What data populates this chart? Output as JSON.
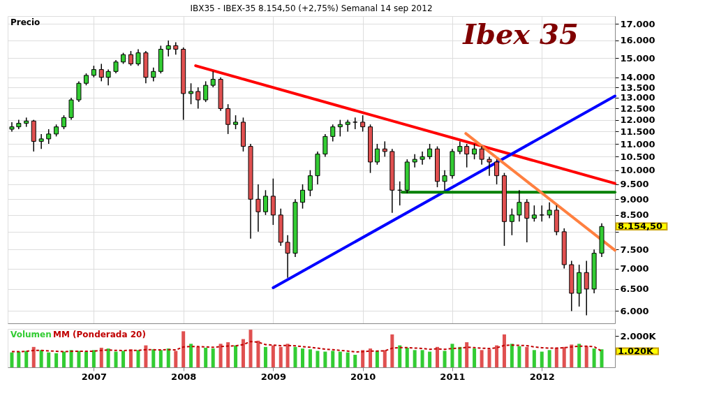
{
  "chart_data": [
    {
      "type": "candlestick",
      "title": "IBX35 - IBEX-35   8.154,50 (+2,75%)   Semanal  14 sep 2012",
      "ylabel": "Precio",
      "log": true,
      "grid": true,
      "tick_labels": "y",
      "x": [
        "2006-02",
        "2006-03",
        "2006-04",
        "2006-05",
        "2006-06",
        "2006-07",
        "2006-08",
        "2006-09",
        "2006-10",
        "2006-11",
        "2006-12",
        "2007-01",
        "2007-02",
        "2007-03",
        "2007-04",
        "2007-05",
        "2007-06",
        "2007-07",
        "2007-08",
        "2007-09",
        "2007-10",
        "2007-11",
        "2007-12",
        "2008-01",
        "2008-02",
        "2008-03",
        "2008-04",
        "2008-05",
        "2008-06",
        "2008-07",
        "2008-08",
        "2008-09",
        "2008-10",
        "2008-11",
        "2008-12",
        "2009-01",
        "2009-02",
        "2009-03",
        "2009-04",
        "2009-05",
        "2009-06",
        "2009-07",
        "2009-08",
        "2009-09",
        "2009-10",
        "2009-11",
        "2009-12",
        "2010-01",
        "2010-02",
        "2010-03",
        "2010-04",
        "2010-05",
        "2010-06",
        "2010-07",
        "2010-08",
        "2010-09",
        "2010-10",
        "2010-11",
        "2010-12",
        "2011-01",
        "2011-02",
        "2011-03",
        "2011-04",
        "2011-05",
        "2011-06",
        "2011-07",
        "2011-08",
        "2011-09",
        "2011-10",
        "2011-11",
        "2011-12",
        "2012-01",
        "2012-02",
        "2012-03",
        "2012-04",
        "2012-05",
        "2012-06",
        "2012-07",
        "2012-08",
        "2012-09"
      ],
      "ohlc": [
        [
          11600,
          11900,
          11500,
          11700
        ],
        [
          11700,
          12000,
          11600,
          11850
        ],
        [
          11850,
          12100,
          11700,
          11950
        ],
        [
          11950,
          12000,
          10700,
          11100
        ],
        [
          11100,
          11400,
          10800,
          11200
        ],
        [
          11200,
          11600,
          11000,
          11400
        ],
        [
          11400,
          11800,
          11300,
          11700
        ],
        [
          11700,
          12200,
          11600,
          12100
        ],
        [
          12100,
          13000,
          12000,
          12900
        ],
        [
          12900,
          13800,
          12800,
          13700
        ],
        [
          13700,
          14200,
          13600,
          14100
        ],
        [
          14100,
          14600,
          14000,
          14400
        ],
        [
          14400,
          14700,
          13800,
          14000
        ],
        [
          14000,
          14400,
          13600,
          14300
        ],
        [
          14300,
          14900,
          14200,
          14800
        ],
        [
          14800,
          15300,
          14700,
          15200
        ],
        [
          15200,
          15400,
          14600,
          14700
        ],
        [
          14700,
          15500,
          14600,
          15300
        ],
        [
          15300,
          15400,
          13700,
          14000
        ],
        [
          14000,
          14500,
          13800,
          14300
        ],
        [
          14300,
          15700,
          14200,
          15500
        ],
        [
          15500,
          16000,
          15100,
          15700
        ],
        [
          15700,
          15900,
          15200,
          15500
        ],
        [
          15500,
          15600,
          12000,
          13200
        ],
        [
          13200,
          13700,
          12700,
          13300
        ],
        [
          13300,
          13500,
          12500,
          12900
        ],
        [
          12900,
          13800,
          12800,
          13600
        ],
        [
          13600,
          14300,
          13500,
          13900
        ],
        [
          13900,
          14000,
          12400,
          12500
        ],
        [
          12500,
          12700,
          11400,
          11800
        ],
        [
          11800,
          12200,
          11600,
          11900
        ],
        [
          11900,
          12100,
          10700,
          10900
        ],
        [
          10900,
          11000,
          7800,
          9000
        ],
        [
          9000,
          9500,
          8000,
          8600
        ],
        [
          8600,
          9300,
          8500,
          9100
        ],
        [
          9100,
          9700,
          8200,
          8500
        ],
        [
          8500,
          8700,
          7600,
          7700
        ],
        [
          7700,
          7900,
          6770,
          7400
        ],
        [
          7400,
          9000,
          7300,
          8900
        ],
        [
          8900,
          9500,
          8700,
          9300
        ],
        [
          9300,
          10000,
          9100,
          9800
        ],
        [
          9800,
          10700,
          9500,
          10600
        ],
        [
          10600,
          11400,
          10500,
          11300
        ],
        [
          11300,
          11800,
          11100,
          11700
        ],
        [
          11700,
          12000,
          11300,
          11800
        ],
        [
          11800,
          12000,
          11500,
          11900
        ],
        [
          11900,
          12100,
          11600,
          11900
        ],
        [
          11900,
          12200,
          11500,
          11700
        ],
        [
          11700,
          11800,
          9900,
          10300
        ],
        [
          10300,
          11000,
          10200,
          10800
        ],
        [
          10800,
          11100,
          10500,
          10700
        ],
        [
          10700,
          10800,
          8570,
          9300
        ],
        [
          9300,
          9600,
          8800,
          9300
        ],
        [
          9300,
          10400,
          9200,
          10300
        ],
        [
          10300,
          10600,
          10100,
          10400
        ],
        [
          10400,
          10700,
          10200,
          10500
        ],
        [
          10500,
          11000,
          10400,
          10800
        ],
        [
          10800,
          10900,
          9400,
          9600
        ],
        [
          9600,
          10000,
          9300,
          9800
        ],
        [
          9800,
          10800,
          9700,
          10700
        ],
        [
          10700,
          11100,
          10600,
          10900
        ],
        [
          10900,
          11000,
          10100,
          10600
        ],
        [
          10600,
          11000,
          10400,
          10800
        ],
        [
          10800,
          10900,
          10200,
          10400
        ],
        [
          10400,
          10500,
          9800,
          10300
        ],
        [
          10300,
          10400,
          9500,
          9800
        ],
        [
          9800,
          9900,
          7600,
          8300
        ],
        [
          8300,
          8700,
          7900,
          8500
        ],
        [
          8500,
          9300,
          8300,
          8900
        ],
        [
          8900,
          9000,
          7700,
          8400
        ],
        [
          8400,
          8800,
          8300,
          8500
        ],
        [
          8500,
          8800,
          8300,
          8500
        ],
        [
          8500,
          8900,
          8400,
          8650
        ],
        [
          8650,
          8800,
          7900,
          8000
        ],
        [
          8000,
          8100,
          7000,
          7100
        ],
        [
          7100,
          7200,
          6000,
          6400
        ],
        [
          6400,
          7100,
          6100,
          6900
        ],
        [
          6900,
          7200,
          5910,
          6500
        ],
        [
          6500,
          7500,
          6400,
          7400
        ],
        [
          7400,
          8250,
          7300,
          8154.5
        ]
      ],
      "series": [
        {
          "type": "line",
          "color": "#ff0000",
          "x": [
            "2008-02-20",
            "2012-10-25"
          ],
          "values": [
            14600,
            9530
          ]
        },
        {
          "type": "line",
          "color": "#0000ff",
          "x": [
            "2009-01-01",
            "2012-10-25"
          ],
          "values": [
            6530,
            13080
          ]
        },
        {
          "type": "line",
          "color": "#008000",
          "x": [
            "2010-06-10",
            "2012-10-25"
          ],
          "values": [
            9230,
            9230
          ]
        },
        {
          "type": "line",
          "color": "#ff8040",
          "x": [
            "2011-02-25",
            "2012-10-25"
          ],
          "values": [
            11420,
            7480
          ]
        }
      ],
      "annotations": [
        "Ibex 35",
        {
          "text": "8.154,50",
          "x": "2012-09",
          "y": 8154.5
        }
      ],
      "xlim": [
        "2006-01-15",
        "2012-10-25"
      ],
      "xticks": [
        "2007",
        "2008",
        "2009",
        "2010",
        "2011",
        "2012"
      ],
      "ylim": [
        5740,
        17480
      ],
      "yticks": [
        {
          "value": 6000,
          "label": "6.000"
        },
        {
          "value": 6500,
          "label": "6.500"
        },
        {
          "value": 7000,
          "label": "7.000"
        },
        {
          "value": 7500,
          "label": "7.500"
        },
        {
          "value": 8000,
          "label": null
        },
        {
          "value": 8500,
          "label": "8.500"
        },
        {
          "value": 9000,
          "label": "9.000"
        },
        {
          "value": 9500,
          "label": "9.500"
        },
        {
          "value": 10000,
          "label": "10.000"
        },
        {
          "value": 10500,
          "label": "10.500"
        },
        {
          "value": 11000,
          "label": "11.000"
        },
        {
          "value": 11500,
          "label": "11.500"
        },
        {
          "value": 12000,
          "label": "12.000"
        },
        {
          "value": 12500,
          "label": "12.500"
        },
        {
          "value": 13000,
          "label": "13.000"
        },
        {
          "value": 13500,
          "label": "13.500"
        },
        {
          "value": 14000,
          "label": "14.000"
        },
        {
          "value": 15000,
          "label": "15.000"
        },
        {
          "value": 16000,
          "label": "16.000"
        },
        {
          "value": 17000,
          "label": "17.000"
        }
      ]
    },
    {
      "type": "bar",
      "legend": "top left",
      "x": [
        "2006-02",
        "2006-03",
        "2006-04",
        "2006-05",
        "2006-06",
        "2006-07",
        "2006-08",
        "2006-09",
        "2006-10",
        "2006-11",
        "2006-12",
        "2007-01",
        "2007-02",
        "2007-03",
        "2007-04",
        "2007-05",
        "2007-06",
        "2007-07",
        "2007-08",
        "2007-09",
        "2007-10",
        "2007-11",
        "2007-12",
        "2008-01",
        "2008-02",
        "2008-03",
        "2008-04",
        "2008-05",
        "2008-06",
        "2008-07",
        "2008-08",
        "2008-09",
        "2008-10",
        "2008-11",
        "2008-12",
        "2009-01",
        "2009-02",
        "2009-03",
        "2009-04",
        "2009-05",
        "2009-06",
        "2009-07",
        "2009-08",
        "2009-09",
        "2009-10",
        "2009-11",
        "2009-12",
        "2010-01",
        "2010-02",
        "2010-03",
        "2010-04",
        "2010-05",
        "2010-06",
        "2010-07",
        "2010-08",
        "2010-09",
        "2010-10",
        "2010-11",
        "2010-12",
        "2011-01",
        "2011-02",
        "2011-03",
        "2011-04",
        "2011-05",
        "2011-06",
        "2011-07",
        "2011-08",
        "2011-09",
        "2011-10",
        "2011-11",
        "2011-12",
        "2012-01",
        "2012-02",
        "2012-03",
        "2012-04",
        "2012-05",
        "2012-06",
        "2012-07",
        "2012-08",
        "2012-09"
      ],
      "series": [
        {
          "name": "Volumen",
          "type": "bar",
          "color": "#33cc33",
          "values": [
            950,
            1000,
            1050,
            1300,
            1100,
            950,
            900,
            1000,
            1100,
            1050,
            1000,
            1100,
            1250,
            1200,
            1000,
            1050,
            1150,
            1100,
            1400,
            1150,
            1100,
            1200,
            1050,
            2300,
            1500,
            1300,
            1250,
            1200,
            1500,
            1600,
            1400,
            1800,
            2400,
            1700,
            1300,
            1400,
            1300,
            1500,
            1300,
            1200,
            1150,
            1050,
            1000,
            1050,
            1000,
            950,
            800,
            1100,
            1200,
            1050,
            1100,
            2100,
            1400,
            1250,
            1100,
            1100,
            1000,
            1300,
            1050,
            1500,
            1300,
            1600,
            1200,
            1100,
            1150,
            1400,
            2100,
            1500,
            1350,
            1300,
            1100,
            1000,
            1100,
            1250,
            1300,
            1450,
            1500,
            1350,
            1200,
            1150
          ],
          "colors": [
            "#33cc33",
            "#33cc33",
            "#33cc33",
            "#e05050",
            "#33cc33",
            "#33cc33",
            "#33cc33",
            "#33cc33",
            "#33cc33",
            "#33cc33",
            "#33cc33",
            "#33cc33",
            "#e05050",
            "#33cc33",
            "#33cc33",
            "#33cc33",
            "#e05050",
            "#33cc33",
            "#e05050",
            "#33cc33",
            "#33cc33",
            "#33cc33",
            "#e05050",
            "#e05050",
            "#33cc33",
            "#e05050",
            "#33cc33",
            "#33cc33",
            "#e05050",
            "#e05050",
            "#33cc33",
            "#e05050",
            "#e05050",
            "#e05050",
            "#33cc33",
            "#e05050",
            "#e05050",
            "#e05050",
            "#33cc33",
            "#33cc33",
            "#33cc33",
            "#33cc33",
            "#33cc33",
            "#33cc33",
            "#33cc33",
            "#33cc33",
            "#33cc33",
            "#e05050",
            "#e05050",
            "#33cc33",
            "#e05050",
            "#e05050",
            "#33cc33",
            "#33cc33",
            "#33cc33",
            "#33cc33",
            "#33cc33",
            "#e05050",
            "#33cc33",
            "#33cc33",
            "#33cc33",
            "#e05050",
            "#33cc33",
            "#e05050",
            "#e05050",
            "#e05050",
            "#e05050",
            "#33cc33",
            "#33cc33",
            "#e05050",
            "#33cc33",
            "#33cc33",
            "#33cc33",
            "#e05050",
            "#e05050",
            "#e05050",
            "#33cc33",
            "#e05050",
            "#33cc33",
            "#33cc33"
          ]
        },
        {
          "name": "MM (Ponderada 20)",
          "type": "line",
          "color": "#c00000",
          "line_style": "dashed",
          "values": [
            1000,
            1000,
            1020,
            1080,
            1080,
            1050,
            1020,
            1000,
            1020,
            1030,
            1020,
            1030,
            1080,
            1100,
            1080,
            1070,
            1080,
            1080,
            1120,
            1120,
            1110,
            1130,
            1110,
            1300,
            1330,
            1320,
            1300,
            1280,
            1320,
            1360,
            1370,
            1450,
            1650,
            1600,
            1450,
            1420,
            1380,
            1400,
            1370,
            1320,
            1280,
            1220,
            1160,
            1120,
            1080,
            1040,
            980,
            1000,
            1040,
            1040,
            1050,
            1220,
            1260,
            1260,
            1230,
            1200,
            1150,
            1180,
            1150,
            1200,
            1220,
            1280,
            1260,
            1220,
            1200,
            1240,
            1400,
            1420,
            1400,
            1380,
            1300,
            1250,
            1220,
            1230,
            1250,
            1300,
            1350,
            1350,
            1320,
            1020
          ]
        }
      ],
      "annotations": [
        {
          "text": "1.020K",
          "x": "2012-09",
          "y": 1020
        }
      ],
      "xlim": [
        "2006-01-15",
        "2012-10-25"
      ],
      "xticks": [
        "2007",
        "2008",
        "2009",
        "2010",
        "2011",
        "2012"
      ],
      "ylim": [
        0,
        2450
      ],
      "yticks": [
        {
          "value": 2000,
          "label": "2.000K"
        }
      ]
    }
  ]
}
